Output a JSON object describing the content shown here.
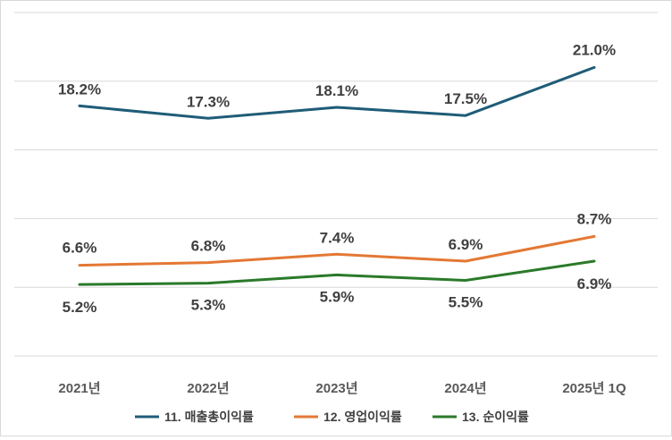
{
  "chart_data": {
    "type": "line",
    "categories": [
      "2021년",
      "2022년",
      "2023년",
      "2024년",
      "2025년 1Q"
    ],
    "series": [
      {
        "name": "11. 매출총이익률",
        "color": "#1f5c78",
        "values": [
          18.2,
          17.3,
          18.1,
          17.5,
          21.0
        ],
        "labels": [
          "18.2%",
          "17.3%",
          "18.1%",
          "17.5%",
          "21.0%"
        ]
      },
      {
        "name": "12. 영업이익률",
        "color": "#e37834",
        "values": [
          6.6,
          6.8,
          7.4,
          6.9,
          8.7
        ],
        "labels": [
          "6.6%",
          "6.8%",
          "7.4%",
          "6.9%",
          "8.7%"
        ]
      },
      {
        "name": "13. 순이익률",
        "color": "#2a7a2a",
        "values": [
          5.2,
          5.3,
          5.9,
          5.5,
          6.9
        ],
        "labels": [
          "5.2%",
          "5.3%",
          "5.9%",
          "5.5%",
          "6.9%"
        ]
      }
    ],
    "ylim": [
      0,
      25
    ],
    "grid": true,
    "legend": "bottom"
  }
}
